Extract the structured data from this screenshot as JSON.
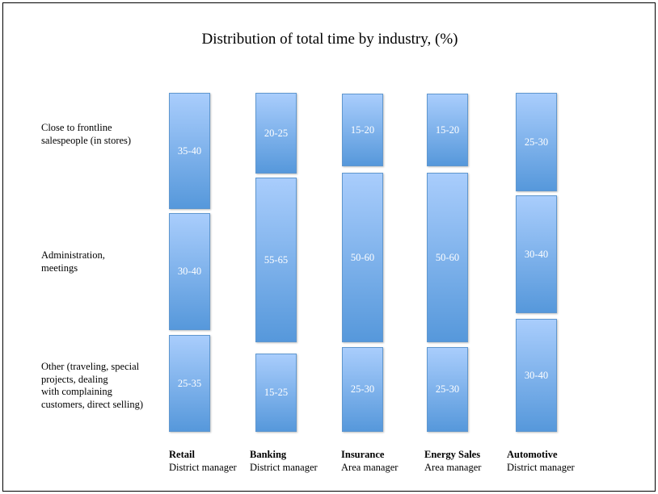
{
  "chart_data": {
    "type": "bar",
    "title": "Distribution of total time by industry, (%)",
    "rows": [
      "Close to frontline\nsalespeople (in stores)",
      "Administration,\nmeetings",
      "Other (traveling, special\nprojects, dealing\nwith complaining\ncustomers, direct selling)"
    ],
    "categories": [
      {
        "name": "Retail",
        "role": "District manager",
        "values": [
          "35-40",
          "30-40",
          "25-35"
        ]
      },
      {
        "name": "Banking",
        "role": "District manager",
        "values": [
          "20-25",
          "55-65",
          "15-25"
        ]
      },
      {
        "name": "Insurance",
        "role": "Area manager",
        "values": [
          "15-20",
          "50-60",
          "25-30"
        ]
      },
      {
        "name": "Energy Sales",
        "role": "Area manager",
        "values": [
          "15-20",
          "50-60",
          "25-30"
        ]
      },
      {
        "name": "Automotive",
        "role": "District manager",
        "values": [
          "25-30",
          "30-40",
          "30-40"
        ]
      }
    ],
    "colors": {
      "bar_top": "#a9cdfc",
      "bar_bottom": "#5698db",
      "border": "#5f97cf"
    }
  }
}
